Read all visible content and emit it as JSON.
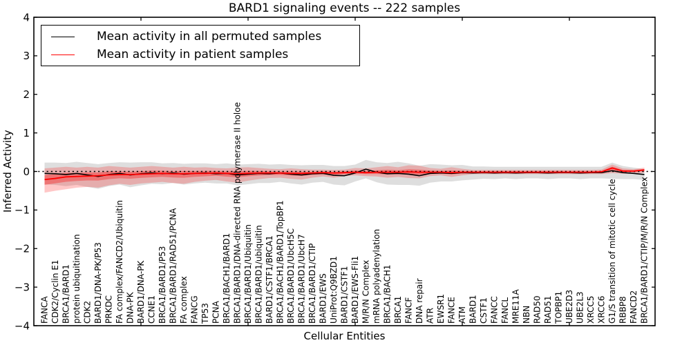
{
  "header": {
    "title": "BARD1 signaling events -- 222 samples"
  },
  "legend": {
    "entries": [
      {
        "label": "Mean activity in all permuted samples",
        "color": "#000000"
      },
      {
        "label": "Mean activity in patient samples",
        "color": "#ff0000"
      }
    ]
  },
  "chart_data": {
    "type": "line",
    "title": "BARD1 signaling events -- 222 samples",
    "xlabel": "Cellular Entities",
    "ylabel": "Inferred Activity",
    "ylim": [
      -4,
      4
    ],
    "yticks": [
      4,
      3,
      2,
      1,
      0,
      -1,
      -2,
      -3,
      -4
    ],
    "xticks": [
      10,
      20,
      30,
      40,
      50
    ],
    "grid": false,
    "legend_position": "upper left",
    "reference_line": 0,
    "categories": [
      "FANCA",
      "CDK2/Cyclin E1",
      "BRCA1/BARD1",
      "protein ubiquitination",
      "CDK2",
      "BARD1/DNA-PK/P53",
      "PRKDC",
      "FA complex/FANCD2/Ubiquitin",
      "DNA-PK",
      "BARD1/DNA-PK",
      "CCNE1",
      "BRCA1/BARD1/P53",
      "BRCA1/BARD1/RAD51/PCNA",
      "FA complex",
      "FANCG",
      "TP53",
      "PCNA",
      "BRCA1/BACH1/BARD1",
      "BRCA1/BARD1/DNA-directed RNA polymerase II holoe",
      "BRCA1/BARD1/Ubiquitin",
      "BRCA1/BARD1/ubiquitin",
      "BARD1/CSTF1/BRCA1",
      "BRCA1/BACH1/BARD1/TopBP1",
      "BRCA1/BARD1/UbcH5C",
      "BRCA1/BARD1/UbcH7",
      "BRCA1/BARD1/CTIP",
      "BARD1/EWS",
      "UniProt:Q9BZD1",
      "BARD1/CSTF1",
      "BARD1/EWS-Fli1",
      "M/R/N Complex",
      "mRNA polyadenylation",
      "BRCA1/BACH1",
      "BRCA1",
      "FANCF",
      "DNA repair",
      "ATR",
      "EWSR1",
      "FANCE",
      "ATM",
      "BARD1",
      "CSTF1",
      "FANCC",
      "FANCL",
      "MRE11A",
      "NBN",
      "RAD50",
      "RAD51",
      "TOPBP1",
      "UBE2D3",
      "UBE2L3",
      "XRCC5",
      "XRCC6",
      "G1/S transition of mitotic cell cycle",
      "RBBP8",
      "FANCD2",
      "BRCA1/BARD1/CTIP/M/R/N Complex"
    ],
    "series": [
      {
        "name": "Mean activity in all permuted samples",
        "color": "#000000",
        "line_width": 1.6,
        "band_color": "rgba(0,0,0,0.13)",
        "values": [
          -0.05,
          -0.06,
          -0.08,
          -0.05,
          -0.09,
          -0.13,
          -0.08,
          -0.05,
          -0.09,
          -0.06,
          -0.04,
          -0.06,
          -0.04,
          -0.07,
          -0.05,
          -0.04,
          -0.06,
          -0.05,
          -0.09,
          -0.07,
          -0.05,
          -0.06,
          -0.04,
          -0.07,
          -0.09,
          -0.06,
          -0.05,
          -0.1,
          -0.11,
          -0.04,
          0.06,
          -0.02,
          -0.06,
          -0.05,
          -0.07,
          -0.11,
          -0.05,
          -0.04,
          -0.05,
          -0.03,
          -0.04,
          -0.03,
          -0.04,
          -0.03,
          -0.04,
          -0.03,
          -0.03,
          -0.04,
          -0.03,
          -0.03,
          -0.04,
          -0.03,
          -0.03,
          0.02,
          -0.03,
          -0.05,
          -0.08
        ],
        "band_upper": [
          0.23,
          0.23,
          0.22,
          0.25,
          0.22,
          0.19,
          0.22,
          0.24,
          0.23,
          0.24,
          0.24,
          0.21,
          0.22,
          0.2,
          0.21,
          0.21,
          0.19,
          0.21,
          0.18,
          0.19,
          0.2,
          0.18,
          0.19,
          0.17,
          0.16,
          0.17,
          0.17,
          0.14,
          0.14,
          0.18,
          0.3,
          0.24,
          0.22,
          0.25,
          0.21,
          0.15,
          0.19,
          0.18,
          0.16,
          0.17,
          0.13,
          0.13,
          0.12,
          0.12,
          0.12,
          0.12,
          0.12,
          0.12,
          0.12,
          0.12,
          0.12,
          0.12,
          0.12,
          0.23,
          0.14,
          0.1,
          0.06
        ],
        "band_lower": [
          -0.33,
          -0.35,
          -0.38,
          -0.35,
          -0.4,
          -0.45,
          -0.38,
          -0.34,
          -0.41,
          -0.36,
          -0.32,
          -0.33,
          -0.3,
          -0.34,
          -0.31,
          -0.29,
          -0.31,
          -0.31,
          -0.36,
          -0.33,
          -0.3,
          -0.3,
          -0.27,
          -0.31,
          -0.34,
          -0.29,
          -0.27,
          -0.34,
          -0.36,
          -0.26,
          -0.18,
          -0.28,
          -0.34,
          -0.35,
          -0.35,
          -0.37,
          -0.29,
          -0.26,
          -0.26,
          -0.23,
          -0.21,
          -0.19,
          -0.2,
          -0.18,
          -0.2,
          -0.18,
          -0.18,
          -0.2,
          -0.18,
          -0.18,
          -0.2,
          -0.18,
          -0.18,
          -0.19,
          -0.2,
          -0.2,
          -0.22
        ]
      },
      {
        "name": "Mean activity in patient samples",
        "color": "#ff0000",
        "line_width": 1.8,
        "band_color": "rgba(255,0,0,0.22)",
        "core_band_factor": 0.4,
        "core_band_color": "rgba(255,0,0,0.33)",
        "values": [
          -0.21,
          -0.18,
          -0.14,
          -0.13,
          -0.12,
          -0.11,
          -0.09,
          -0.08,
          -0.08,
          -0.07,
          -0.06,
          -0.05,
          -0.06,
          -0.06,
          -0.05,
          -0.05,
          -0.04,
          -0.05,
          -0.06,
          -0.05,
          -0.04,
          -0.04,
          -0.04,
          -0.05,
          -0.05,
          -0.04,
          -0.03,
          -0.04,
          -0.03,
          -0.02,
          -0.03,
          -0.02,
          -0.02,
          -0.02,
          -0.01,
          -0.02,
          -0.02,
          -0.02,
          -0.03,
          -0.02,
          -0.02,
          -0.02,
          -0.02,
          -0.02,
          -0.02,
          -0.02,
          -0.02,
          -0.02,
          -0.02,
          -0.02,
          -0.02,
          -0.02,
          -0.01,
          0.09,
          0.01,
          0.01,
          0.04
        ],
        "band_upper": [
          0.08,
          0.1,
          0.12,
          0.1,
          0.12,
          0.1,
          0.14,
          0.12,
          0.1,
          0.12,
          0.14,
          0.12,
          0.1,
          0.12,
          0.1,
          0.11,
          0.09,
          0.08,
          0.1,
          0.11,
          0.09,
          0.07,
          0.06,
          0.08,
          0.06,
          0.05,
          0.05,
          0.04,
          0.05,
          0.09,
          0.08,
          0.11,
          0.14,
          0.11,
          0.16,
          0.15,
          0.09,
          0.07,
          0.11,
          0.07,
          0.04,
          0.04,
          0.04,
          0.04,
          0.04,
          0.04,
          0.04,
          0.04,
          0.04,
          0.04,
          0.04,
          0.04,
          0.05,
          0.18,
          0.08,
          0.06,
          0.1
        ],
        "band_lower": [
          -0.55,
          -0.5,
          -0.46,
          -0.42,
          -0.4,
          -0.42,
          -0.36,
          -0.32,
          -0.35,
          -0.31,
          -0.29,
          -0.27,
          -0.3,
          -0.32,
          -0.27,
          -0.24,
          -0.22,
          -0.26,
          -0.29,
          -0.24,
          -0.2,
          -0.17,
          -0.16,
          -0.19,
          -0.21,
          -0.16,
          -0.13,
          -0.16,
          -0.12,
          -0.1,
          -0.12,
          -0.13,
          -0.16,
          -0.14,
          -0.17,
          -0.18,
          -0.12,
          -0.1,
          -0.14,
          -0.1,
          -0.07,
          -0.07,
          -0.07,
          -0.07,
          -0.07,
          -0.07,
          -0.07,
          -0.07,
          -0.07,
          -0.07,
          -0.07,
          -0.07,
          -0.07,
          -0.04,
          -0.06,
          -0.05,
          -0.03
        ]
      }
    ]
  }
}
